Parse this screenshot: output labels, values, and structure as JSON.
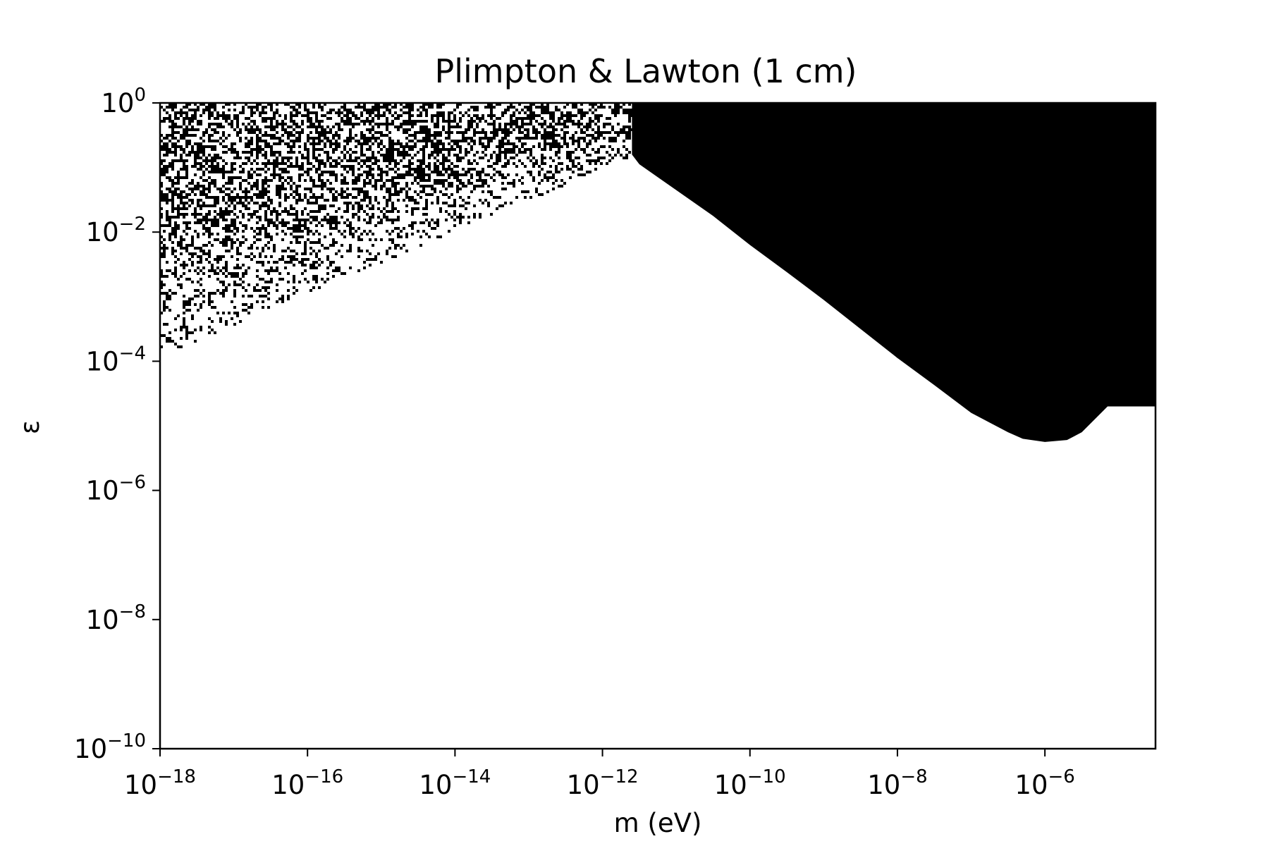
{
  "chart_data": {
    "type": "heatmap",
    "title": "Plimpton & Lawton (1 cm)",
    "xlabel": "m (eV)",
    "ylabel": "ε",
    "xscale": "log",
    "yscale": "log",
    "xlim": [
      1e-18,
      3.16e-05
    ],
    "ylim": [
      1e-10,
      1
    ],
    "grid": false,
    "legend": "none",
    "x_ticks": [
      {
        "base": "10",
        "exp": "−18",
        "value": 1e-18
      },
      {
        "base": "10",
        "exp": "−16",
        "value": 1e-16
      },
      {
        "base": "10",
        "exp": "−14",
        "value": 1e-14
      },
      {
        "base": "10",
        "exp": "−12",
        "value": 1e-12
      },
      {
        "base": "10",
        "exp": "−10",
        "value": 1e-10
      },
      {
        "base": "10",
        "exp": "−8",
        "value": 1e-08
      },
      {
        "base": "10",
        "exp": "−6",
        "value": 1e-06
      }
    ],
    "y_ticks": [
      {
        "base": "10",
        "exp": "0",
        "value": 1
      },
      {
        "base": "10",
        "exp": "−2",
        "value": 0.01
      },
      {
        "base": "10",
        "exp": "−4",
        "value": 0.0001
      },
      {
        "base": "10",
        "exp": "−6",
        "value": 1e-06
      },
      {
        "base": "10",
        "exp": "−8",
        "value": 1e-08
      },
      {
        "base": "10",
        "exp": "−10",
        "value": 1e-10
      }
    ],
    "excluded_region_boundary": {
      "description_color": "#000000",
      "x_log10": [
        -11.6,
        -11.5,
        -11.0,
        -10.5,
        -10.0,
        -9.5,
        -9.0,
        -8.5,
        -8.0,
        -7.5,
        -7.0,
        -6.5,
        -6.3,
        -6.0,
        -5.7,
        -5.5,
        -5.15
      ],
      "y_log10": [
        -0.8,
        -0.95,
        -1.35,
        -1.75,
        -2.2,
        -2.62,
        -3.05,
        -3.5,
        -3.95,
        -4.37,
        -4.8,
        -5.1,
        -5.2,
        -5.25,
        -5.22,
        -5.1,
        -4.7
      ]
    },
    "noisy_region": {
      "x_log10_range": [
        -18,
        -11.6
      ],
      "upper_y_log10": 0,
      "lower_edge": {
        "x_log10": [
          -18,
          -11.6
        ],
        "y_log10": [
          -3.9,
          -0.8
        ]
      }
    },
    "colors": {
      "excluded": "#000000",
      "allowed": "#ffffff"
    }
  }
}
